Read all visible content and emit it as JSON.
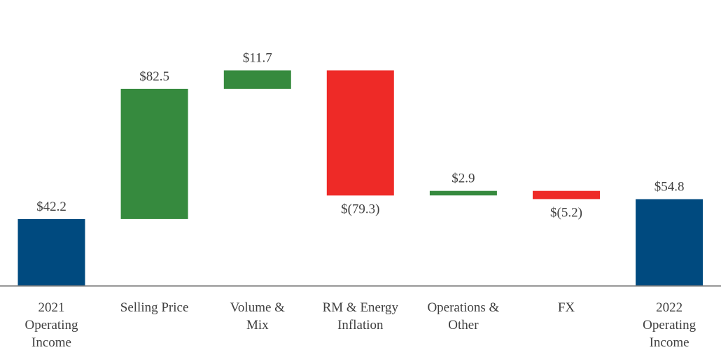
{
  "chart_data": {
    "type": "bar",
    "subtype": "waterfall",
    "title": "",
    "xlabel": "",
    "ylabel": "",
    "grid": false,
    "legend": "none",
    "ylim": [
      0,
      165
    ],
    "categories": [
      [
        "2021",
        "Operating",
        "Income"
      ],
      [
        "Selling Price"
      ],
      [
        "Volume &",
        "Mix"
      ],
      [
        "RM & Energy",
        "Inflation"
      ],
      [
        "Operations &",
        "Other"
      ],
      [
        "FX"
      ],
      [
        "2022",
        "Operating",
        "Income"
      ]
    ],
    "values": [
      42.2,
      82.5,
      11.7,
      -79.3,
      2.9,
      -5.2,
      54.8
    ],
    "kinds": [
      "total",
      "delta",
      "delta",
      "delta",
      "delta",
      "delta",
      "total"
    ],
    "value_labels": [
      "$42.2",
      "$82.5",
      "$11.7",
      "$(79.3)",
      "$2.9",
      "$(5.2)",
      "$54.8"
    ],
    "colors": {
      "total": "#004a7f",
      "increase": "#368a3e",
      "decrease": "#ee2a27",
      "axis": "#7f7f7f"
    }
  }
}
